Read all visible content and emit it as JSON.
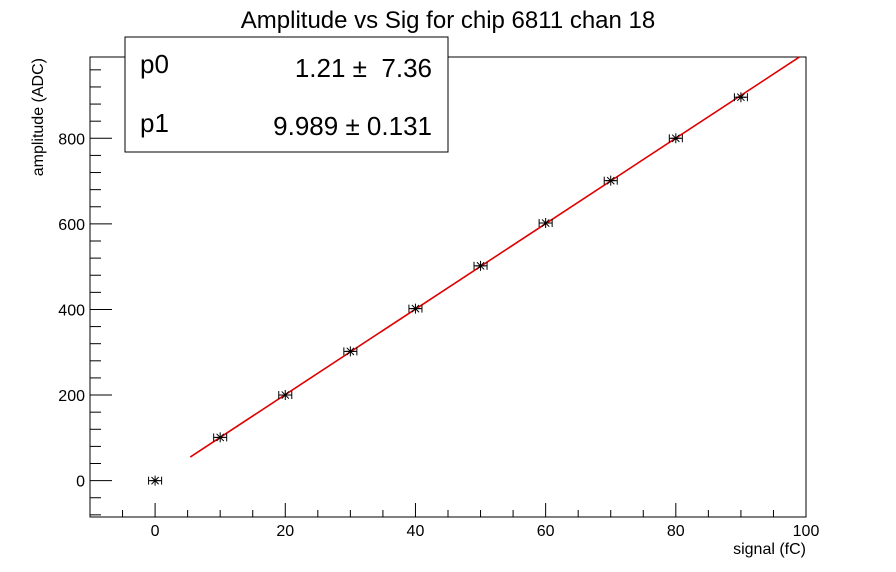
{
  "chart_data": {
    "type": "scatter",
    "title": "Amplitude vs Sig for chip 6811 chan 18",
    "xlabel": "signal (fC)",
    "ylabel": "amplitude (ADC)",
    "xlim": [
      -10,
      100
    ],
    "ylim": [
      -85,
      990
    ],
    "x_ticks": [
      0,
      20,
      40,
      60,
      80,
      100
    ],
    "y_ticks": [
      0,
      200,
      400,
      600,
      800
    ],
    "grid": false,
    "series": [
      {
        "marker": "star",
        "color": "#000000",
        "x_error": 1,
        "points": [
          {
            "x": 0,
            "y": 0
          },
          {
            "x": 10,
            "y": 101
          },
          {
            "x": 20,
            "y": 200
          },
          {
            "x": 30,
            "y": 302
          },
          {
            "x": 40,
            "y": 402
          },
          {
            "x": 50,
            "y": 502
          },
          {
            "x": 60,
            "y": 602
          },
          {
            "x": 70,
            "y": 701
          },
          {
            "x": 80,
            "y": 800
          },
          {
            "x": 90,
            "y": 896
          }
        ]
      }
    ],
    "fit": {
      "color": "#e00000",
      "x_range": [
        5.4,
        99
      ],
      "p0": 1.21,
      "p1": 9.989
    },
    "stats_box": {
      "placement": "top-left",
      "rows": [
        {
          "name": "p0",
          "value": "1.21 ±  7.36"
        },
        {
          "name": "p1",
          "value": "9.989 ± 0.131"
        }
      ]
    }
  }
}
